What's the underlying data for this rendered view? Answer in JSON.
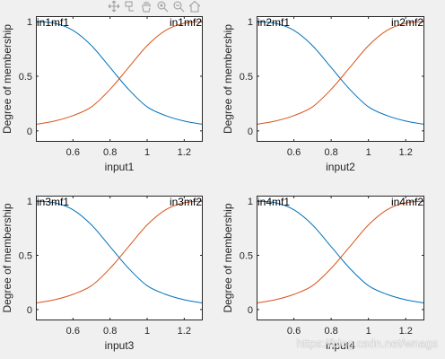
{
  "toolbar": {
    "icons": [
      "pan-icon",
      "data-cursor-icon",
      "hand-icon",
      "zoom-in-icon",
      "zoom-out-icon",
      "home-icon"
    ]
  },
  "watermark": "https://blog.csdn.net/wnags",
  "colors": {
    "mf1": "#0072bd",
    "mf2": "#d95319",
    "axes_bg": "#ffffff",
    "figure_bg": "#f0f0f0"
  },
  "chart_data": [
    {
      "type": "line",
      "xlabel": "input1",
      "ylabel": "Degree of membership",
      "xlim": [
        0.4,
        1.3
      ],
      "ylim": [
        -0.1,
        1.05
      ],
      "xticks": [
        0.6,
        0.8,
        1,
        1.2
      ],
      "xtick_labels": [
        "0.6",
        "0.8",
        "1",
        "1.2"
      ],
      "yticks": [
        0,
        0.5,
        1
      ],
      "ytick_labels": [
        "0",
        "0.5",
        "1"
      ],
      "series": [
        {
          "name": "in1mf1",
          "x": [
            0.4,
            0.5,
            0.6,
            0.7,
            0.8,
            0.9,
            1.0,
            1.1,
            1.2,
            1.3
          ],
          "y": [
            1.0,
            0.985,
            0.92,
            0.78,
            0.58,
            0.38,
            0.22,
            0.14,
            0.09,
            0.06
          ]
        },
        {
          "name": "in1mf2",
          "x": [
            0.4,
            0.5,
            0.6,
            0.7,
            0.8,
            0.9,
            1.0,
            1.1,
            1.2,
            1.3
          ],
          "y": [
            0.06,
            0.09,
            0.14,
            0.22,
            0.38,
            0.58,
            0.78,
            0.92,
            0.985,
            1.0
          ]
        }
      ]
    },
    {
      "type": "line",
      "xlabel": "input2",
      "ylabel": "Degree of membership",
      "xlim": [
        0.4,
        1.3
      ],
      "ylim": [
        -0.1,
        1.05
      ],
      "xticks": [
        0.6,
        0.8,
        1,
        1.2
      ],
      "xtick_labels": [
        "0.6",
        "0.8",
        "1",
        "1.2"
      ],
      "yticks": [
        0,
        0.5,
        1
      ],
      "ytick_labels": [
        "0",
        "0.5",
        "1"
      ],
      "series": [
        {
          "name": "in2mf1",
          "x": [
            0.4,
            0.5,
            0.6,
            0.7,
            0.8,
            0.9,
            1.0,
            1.1,
            1.2,
            1.3
          ],
          "y": [
            1.0,
            0.985,
            0.92,
            0.78,
            0.58,
            0.38,
            0.22,
            0.14,
            0.09,
            0.06
          ]
        },
        {
          "name": "in2mf2",
          "x": [
            0.4,
            0.5,
            0.6,
            0.7,
            0.8,
            0.9,
            1.0,
            1.1,
            1.2,
            1.3
          ],
          "y": [
            0.06,
            0.09,
            0.14,
            0.22,
            0.38,
            0.58,
            0.78,
            0.92,
            0.985,
            1.0
          ]
        }
      ]
    },
    {
      "type": "line",
      "xlabel": "input3",
      "ylabel": "Degree of membership",
      "xlim": [
        0.4,
        1.3
      ],
      "ylim": [
        -0.1,
        1.05
      ],
      "xticks": [
        0.6,
        0.8,
        1,
        1.2
      ],
      "xtick_labels": [
        "0.6",
        "0.8",
        "1",
        "1.2"
      ],
      "yticks": [
        0,
        0.5,
        1
      ],
      "ytick_labels": [
        "0",
        "0.5",
        "1"
      ],
      "series": [
        {
          "name": "in3mf1",
          "x": [
            0.4,
            0.5,
            0.6,
            0.7,
            0.8,
            0.9,
            1.0,
            1.1,
            1.2,
            1.3
          ],
          "y": [
            1.0,
            0.985,
            0.92,
            0.78,
            0.58,
            0.38,
            0.22,
            0.14,
            0.09,
            0.06
          ]
        },
        {
          "name": "in3mf2",
          "x": [
            0.4,
            0.5,
            0.6,
            0.7,
            0.8,
            0.9,
            1.0,
            1.1,
            1.2,
            1.3
          ],
          "y": [
            0.06,
            0.09,
            0.14,
            0.22,
            0.38,
            0.58,
            0.78,
            0.92,
            0.985,
            1.0
          ]
        }
      ]
    },
    {
      "type": "line",
      "xlabel": "input4",
      "ylabel": "Degree of membership",
      "xlim": [
        0.4,
        1.3
      ],
      "ylim": [
        -0.1,
        1.05
      ],
      "xticks": [
        0.6,
        0.8,
        1,
        1.2
      ],
      "xtick_labels": [
        "0.6",
        "0.8",
        "1",
        "1.2"
      ],
      "yticks": [
        0,
        0.5,
        1
      ],
      "ytick_labels": [
        "0",
        "0.5",
        "1"
      ],
      "series": [
        {
          "name": "in4mf1",
          "x": [
            0.4,
            0.5,
            0.6,
            0.7,
            0.8,
            0.9,
            1.0,
            1.1,
            1.2,
            1.3
          ],
          "y": [
            1.0,
            0.985,
            0.92,
            0.78,
            0.58,
            0.38,
            0.22,
            0.14,
            0.09,
            0.06
          ]
        },
        {
          "name": "in4mf2",
          "x": [
            0.4,
            0.5,
            0.6,
            0.7,
            0.8,
            0.9,
            1.0,
            1.1,
            1.2,
            1.3
          ],
          "y": [
            0.06,
            0.09,
            0.14,
            0.22,
            0.38,
            0.58,
            0.78,
            0.92,
            0.985,
            1.0
          ]
        }
      ]
    }
  ]
}
